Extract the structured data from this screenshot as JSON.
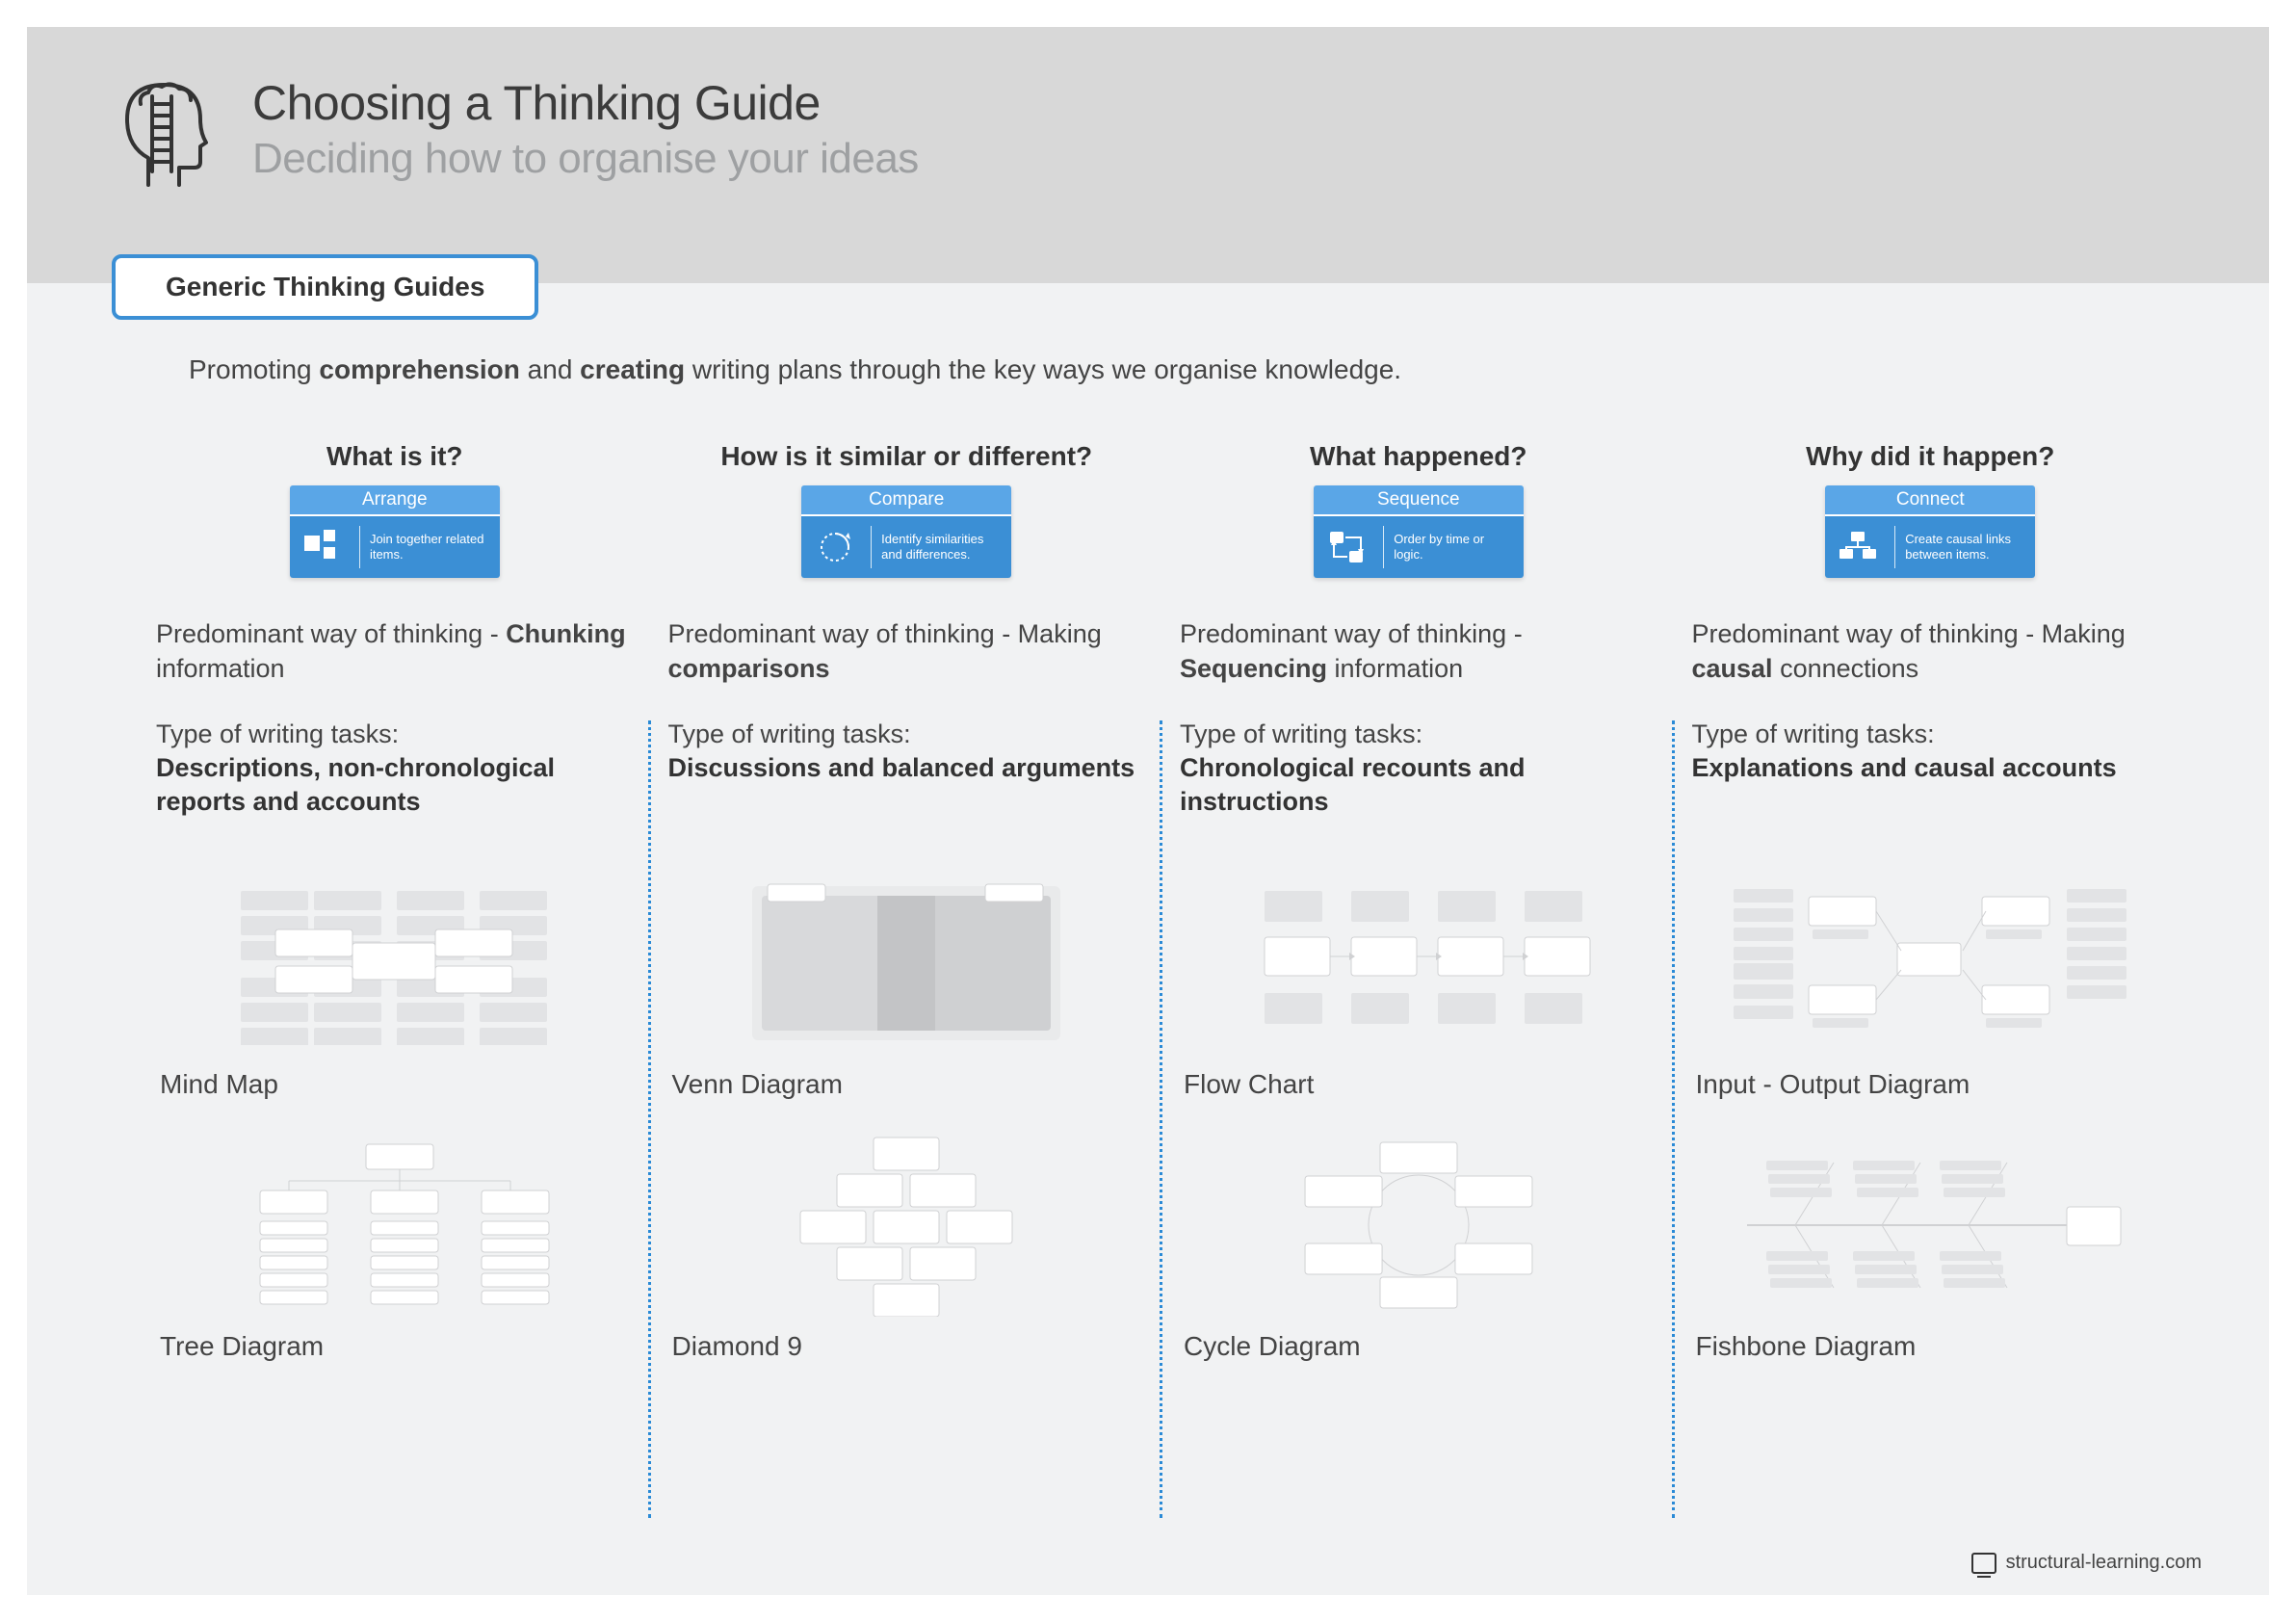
{
  "colors": {
    "page_bg": "#f1f2f3",
    "header_bg": "#d8d8d8",
    "accent_blue": "#3b8fd5",
    "card_blue_top": "#5aa6e7",
    "card_blue_bottom": "#3b8fd5",
    "divider_blue": "#2a8ad6",
    "text_dark": "#333333",
    "text_light": "#8a8d90",
    "thumb_grey": "#e2e3e5",
    "thumb_border": "#d0d1d3"
  },
  "typography": {
    "title_fontsize": 50,
    "subtitle_fontsize": 44,
    "body_fontsize": 28,
    "card_title_fontsize": 19,
    "card_desc_fontsize": 13
  },
  "header": {
    "title": "Choosing a Thinking Guide",
    "subtitle": "Deciding how to organise your ideas"
  },
  "tab": {
    "label": "Generic Thinking Guides"
  },
  "intro": {
    "p1": "Promoting ",
    "b1": "comprehension",
    "p2": " and ",
    "b2": "creating",
    "p3": " writing plans through the key ways we organise knowledge."
  },
  "columns": [
    {
      "question": "What is it?",
      "card": {
        "title": "Arrange",
        "desc": "Join together related items.",
        "icon": "tiles"
      },
      "predominant_prefix": "Predominant way of thinking - ",
      "predominant_bold": "Chunking",
      "predominant_suffix": " information",
      "tasks_label": "Type of writing tasks:",
      "tasks": "Descriptions, non-chronological reports and accounts",
      "diagrams": [
        {
          "name": "Mind Map",
          "kind": "mindmap"
        },
        {
          "name": "Tree Diagram",
          "kind": "tree"
        }
      ]
    },
    {
      "question": "How is it similar or different?",
      "card": {
        "title": "Compare",
        "desc": "Identify similarities and differences.",
        "icon": "circle"
      },
      "predominant_prefix": "Predominant way of thinking - Making ",
      "predominant_bold": "comparisons",
      "predominant_suffix": "",
      "tasks_label": "Type of writing tasks:",
      "tasks": "Discussions and balanced arguments",
      "diagrams": [
        {
          "name": "Venn Diagram",
          "kind": "venn"
        },
        {
          "name": "Diamond 9",
          "kind": "diamond9"
        }
      ]
    },
    {
      "question": "What happened?",
      "card": {
        "title": "Sequence",
        "desc": "Order by time or logic.",
        "icon": "arrows"
      },
      "predominant_prefix": "Predominant way of thinking - ",
      "predominant_bold": "Sequencing",
      "predominant_suffix": " information",
      "tasks_label": "Type of writing tasks:",
      "tasks": "Chronological recounts and instructions",
      "diagrams": [
        {
          "name": "Flow Chart",
          "kind": "flowchart"
        },
        {
          "name": "Cycle Diagram",
          "kind": "cycle"
        }
      ]
    },
    {
      "question": "Why did it happen?",
      "card": {
        "title": "Connect",
        "desc": "Create causal links between items.",
        "icon": "connect"
      },
      "predominant_prefix": "Predominant way of thinking - Making ",
      "predominant_bold": "causal",
      "predominant_suffix": " connections",
      "tasks_label": "Type of writing tasks:",
      "tasks": "Explanations and causal accounts",
      "diagrams": [
        {
          "name": "Input - Output Diagram",
          "kind": "io"
        },
        {
          "name": "Fishbone Diagram",
          "kind": "fishbone"
        }
      ]
    }
  ],
  "footer": {
    "site": "structural-learning.com"
  }
}
